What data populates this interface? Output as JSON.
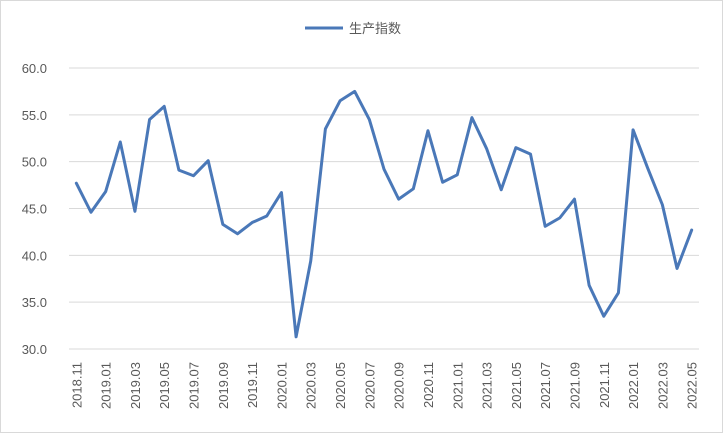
{
  "chart_data": {
    "type": "line",
    "categories": [
      "2018.11",
      null,
      "2019.01",
      null,
      "2019.03",
      null,
      "2019.05",
      null,
      "2019.07",
      null,
      "2019.09",
      null,
      "2019.11",
      null,
      "2020.01",
      null,
      "2020.03",
      null,
      "2020.05",
      null,
      "2020.07",
      null,
      "2020.09",
      null,
      "2020.11",
      null,
      "2021.01",
      null,
      "2021.03",
      null,
      "2021.05",
      null,
      "2021.07",
      null,
      "2021.09",
      null,
      "2021.11",
      null,
      "2022.01",
      null,
      "2022.03",
      null,
      "2022.05"
    ],
    "series": [
      {
        "name": "生产指数",
        "color": "#4a78b8",
        "values": [
          47.7,
          44.6,
          46.8,
          52.1,
          44.7,
          54.5,
          55.9,
          49.1,
          48.5,
          50.1,
          43.3,
          42.3,
          43.5,
          44.2,
          46.7,
          31.3,
          39.4,
          53.5,
          56.5,
          57.5,
          54.5,
          49.2,
          46.0,
          47.1,
          53.3,
          47.8,
          48.6,
          54.7,
          51.4,
          47.0,
          51.5,
          50.8,
          43.1,
          44.0,
          46.0,
          36.8,
          33.5,
          36.0,
          53.4,
          49.3,
          45.4,
          38.6,
          42.7
        ]
      }
    ],
    "ylim": [
      30,
      60
    ],
    "yticks": [
      {
        "value": 30,
        "label": "30.0"
      },
      {
        "value": 35,
        "label": "35.0"
      },
      {
        "value": 40,
        "label": "40.0"
      },
      {
        "value": 45,
        "label": "45.0"
      },
      {
        "value": 50,
        "label": "50.0"
      },
      {
        "value": 55,
        "label": "55.0"
      },
      {
        "value": 60,
        "label": "60.0"
      }
    ],
    "grid": true,
    "legend": "top"
  }
}
